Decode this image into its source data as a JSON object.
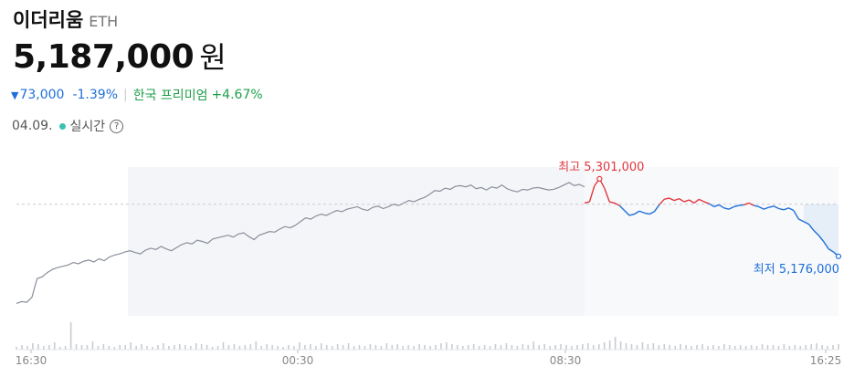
{
  "header": {
    "title": "이더리움",
    "ticker": "ETH",
    "price": "5,187,000",
    "unit": "원",
    "change_arrow": "▼",
    "change_abs": "73,000",
    "change_pct": "-1.39%",
    "premium_label": "한국 프리미엄",
    "premium_value": "+4.67%",
    "date": "04.09.",
    "realtime_label": "실시간",
    "help_icon": "?"
  },
  "colors": {
    "up": "#e0383e",
    "down": "#1e6fd9",
    "base": "#8a8f9a",
    "premium": "#1e9e4a",
    "realtime_dot": "#3cc0b0"
  },
  "chart_data": {
    "type": "line",
    "x_ticks": [
      "16:30",
      "00:30",
      "08:30",
      "16:25"
    ],
    "reference_price": 5260000,
    "high": {
      "label": "최고 5,301,000",
      "value": 5301000,
      "time": "09:10"
    },
    "low": {
      "label": "최저 5,176,000",
      "value": 5176000,
      "time": "16:25"
    },
    "series": [
      {
        "values": [
          5100000,
          5103000,
          5102000,
          5110000,
          5140000,
          5143000,
          5150000,
          5155000,
          5158000,
          5160000,
          5162000,
          5166000,
          5164000,
          5168000,
          5170000,
          5167000,
          5172000,
          5169000,
          5175000,
          5178000,
          5180000,
          5183000,
          5185000,
          5182000,
          5180000,
          5186000,
          5189000,
          5187000,
          5192000,
          5188000,
          5185000,
          5190000,
          5195000,
          5198000,
          5196000,
          5202000,
          5200000,
          5197000,
          5204000,
          5206000,
          5208000,
          5210000,
          5207000,
          5212000,
          5214000,
          5208000,
          5203000,
          5210000,
          5213000,
          5216000,
          5215000,
          5220000,
          5224000,
          5222000,
          5226000,
          5232000,
          5238000,
          5236000,
          5241000,
          5244000,
          5242000,
          5246000,
          5250000,
          5248000,
          5252000,
          5254000,
          5256000,
          5252000,
          5250000,
          5255000,
          5257000,
          5253000,
          5256000,
          5260000,
          5258000,
          5262000,
          5266000,
          5264000,
          5268000,
          5271000,
          5276000,
          5282000,
          5281000,
          5286000,
          5284000,
          5289000,
          5290000,
          5288000,
          5291000,
          5285000,
          5287000,
          5283000,
          5288000,
          5286000,
          5291000,
          5285000,
          5282000,
          5280000,
          5284000,
          5283000,
          5286000,
          5287000,
          5285000,
          5283000,
          5284000,
          5287000,
          5291000,
          5295000,
          5290000,
          5292000,
          5288000
        ]
      },
      {
        "values": [
          5262000,
          5264000,
          5290000,
          5301000,
          5286000,
          5264000,
          5262000,
          5258000,
          5250000,
          5242000,
          5244000,
          5249000,
          5246000,
          5244000,
          5248000,
          5259000,
          5268000,
          5270000,
          5266000,
          5269000,
          5264000,
          5267000,
          5262000,
          5268000,
          5264000,
          5261000,
          5256000,
          5259000,
          5254000,
          5252000,
          5256000,
          5258000,
          5259000,
          5262000,
          5258000,
          5256000,
          5252000,
          5255000,
          5257000,
          5253000,
          5251000,
          5254000,
          5250000,
          5236000,
          5232000,
          5228000,
          5218000,
          5210000,
          5200000,
          5188000,
          5183000,
          5176000
        ]
      }
    ],
    "volume": [
      3,
      5,
      4,
      7,
      6,
      4,
      5,
      8,
      3,
      4,
      30,
      6,
      5,
      5,
      9,
      4,
      6,
      4,
      3,
      5,
      5,
      8,
      4,
      6,
      4,
      3,
      5,
      7,
      4,
      5,
      6,
      5,
      4,
      7,
      6,
      5,
      3,
      4,
      8,
      5,
      6,
      4,
      5,
      6,
      9,
      4,
      6,
      5,
      4,
      3,
      5,
      4,
      8,
      5,
      6,
      4,
      7,
      5,
      4,
      6,
      5,
      7,
      4,
      5,
      4,
      6,
      5,
      4,
      7,
      5,
      6,
      4,
      5,
      4,
      6,
      5,
      4,
      5,
      7,
      8,
      6,
      5,
      4,
      5,
      6,
      4,
      5,
      4,
      6,
      5,
      7,
      5,
      4,
      6,
      5,
      9,
      5,
      6,
      4,
      5,
      6,
      5,
      4,
      5,
      6,
      7,
      5,
      6,
      8,
      10,
      14,
      9,
      7,
      6,
      5,
      8,
      6,
      7,
      5,
      6,
      5,
      4,
      6,
      5,
      4,
      5,
      6,
      4,
      5,
      4,
      6,
      5,
      4,
      5,
      4,
      5,
      4,
      6,
      5,
      5,
      4,
      6,
      4,
      5,
      4,
      5,
      6,
      7,
      5,
      4,
      5,
      6
    ]
  }
}
